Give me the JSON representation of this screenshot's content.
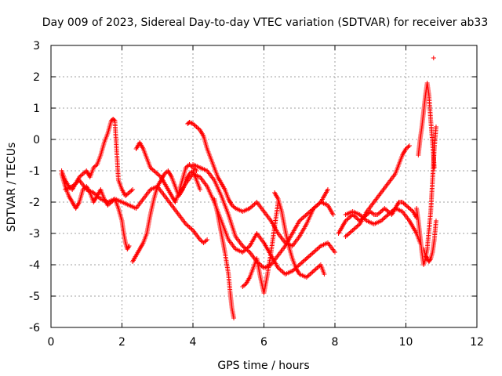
{
  "chart_data": {
    "type": "scatter",
    "title": "Day 009 of 2023, Sidereal Day-to-day VTEC variation (SDTVAR) for receiver ab33",
    "xlabel": "GPS time / hours",
    "ylabel": "SDTVAR / TECUs",
    "xlim": [
      0,
      12
    ],
    "ylim": [
      -6,
      3
    ],
    "xticks": [
      0,
      2,
      4,
      6,
      8,
      10,
      12
    ],
    "yticks": [
      -6,
      -5,
      -4,
      -3,
      -2,
      -1,
      0,
      1,
      2,
      3
    ],
    "grid": true,
    "marker": "+",
    "color": "#ff0000",
    "series": [
      {
        "name": "s1",
        "x": [
          0.3,
          0.4,
          0.5,
          0.6,
          0.7,
          0.8,
          0.9,
          1.0,
          1.1,
          1.2,
          1.3,
          1.4,
          1.5,
          1.6,
          1.7,
          1.75,
          1.8,
          1.9,
          2.0,
          2.1,
          2.2,
          2.3
        ],
        "y": [
          -1.0,
          -1.3,
          -1.5,
          -1.6,
          -1.4,
          -1.2,
          -1.1,
          -1.0,
          -1.2,
          -0.9,
          -0.8,
          -0.5,
          -0.1,
          0.2,
          0.6,
          0.65,
          0.6,
          -1.3,
          -1.6,
          -1.8,
          -1.7,
          -1.6
        ]
      },
      {
        "name": "s2",
        "x": [
          0.3,
          0.4,
          0.5,
          0.6,
          0.7,
          0.8,
          0.9,
          1.0,
          1.1,
          1.2,
          1.3,
          1.4,
          1.5,
          1.6,
          1.7,
          1.8,
          1.9,
          2.0,
          2.05,
          2.1,
          2.15,
          2.2
        ],
        "y": [
          -1.1,
          -1.5,
          -1.8,
          -2.0,
          -2.2,
          -2.0,
          -1.6,
          -1.5,
          -1.7,
          -2.0,
          -1.8,
          -1.6,
          -1.9,
          -2.1,
          -2.0,
          -1.9,
          -2.2,
          -2.6,
          -3.0,
          -3.3,
          -3.5,
          -3.4
        ]
      },
      {
        "name": "s3",
        "x": [
          0.4,
          0.6,
          0.8,
          1.0,
          1.2,
          1.4,
          1.6,
          1.8,
          2.0,
          2.2,
          2.4,
          2.6,
          2.8,
          3.0,
          3.2,
          3.4,
          3.6,
          3.8,
          4.0,
          4.2,
          4.3,
          4.4
        ],
        "y": [
          -1.6,
          -1.5,
          -1.3,
          -1.6,
          -1.7,
          -1.9,
          -2.0,
          -1.9,
          -2.0,
          -2.1,
          -2.2,
          -1.9,
          -1.6,
          -1.5,
          -1.8,
          -2.1,
          -2.4,
          -2.7,
          -2.9,
          -3.2,
          -3.3,
          -3.2
        ]
      },
      {
        "name": "s4",
        "x": [
          2.3,
          2.4,
          2.5,
          2.6,
          2.7,
          2.8,
          2.9,
          3.0,
          3.1,
          3.2,
          3.3,
          3.4,
          3.5,
          3.6,
          3.7,
          3.8,
          3.9,
          4.0,
          4.1,
          4.2
        ],
        "y": [
          -3.9,
          -3.7,
          -3.5,
          -3.3,
          -3.0,
          -2.4,
          -1.9,
          -1.5,
          -1.3,
          -1.1,
          -1.0,
          -1.2,
          -1.5,
          -1.8,
          -1.6,
          -1.3,
          -1.1,
          -1.0,
          -1.3,
          -1.6
        ]
      },
      {
        "name": "s5",
        "x": [
          2.4,
          2.5,
          2.6,
          2.7,
          2.8,
          2.9,
          3.0,
          3.1,
          3.2,
          3.3,
          3.4,
          3.5,
          3.6,
          3.7,
          3.8,
          3.9,
          4.0,
          4.1
        ],
        "y": [
          -0.3,
          -0.1,
          -0.3,
          -0.6,
          -0.9,
          -1.0,
          -1.1,
          -1.2,
          -1.4,
          -1.6,
          -1.8,
          -2.0,
          -1.7,
          -1.3,
          -0.9,
          -0.8,
          -0.9,
          -1.0
        ]
      },
      {
        "name": "s6",
        "x": [
          3.85,
          3.9,
          4.0,
          4.1,
          4.2,
          4.3,
          4.4,
          4.5,
          4.6,
          4.7,
          4.8,
          4.9,
          5.0,
          5.1,
          5.2,
          5.4,
          5.6,
          5.8,
          6.0,
          6.2,
          6.4,
          6.6,
          6.8,
          7.0,
          7.2,
          7.4,
          7.6,
          7.8
        ],
        "y": [
          0.5,
          0.55,
          0.5,
          0.4,
          0.3,
          0.1,
          -0.3,
          -0.6,
          -0.9,
          -1.2,
          -1.4,
          -1.6,
          -1.9,
          -2.1,
          -2.2,
          -2.3,
          -2.2,
          -2.0,
          -2.3,
          -2.6,
          -3.0,
          -3.3,
          -3.4,
          -3.1,
          -2.7,
          -2.2,
          -2.0,
          -1.6
        ]
      },
      {
        "name": "s7",
        "x": [
          3.6,
          3.8,
          4.0,
          4.2,
          4.4,
          4.6,
          4.8,
          5.0,
          5.2,
          5.4,
          5.6,
          5.8,
          6.0,
          6.2,
          6.4,
          6.6,
          6.8,
          7.0,
          7.2,
          7.4,
          7.6,
          7.8,
          8.0
        ],
        "y": [
          -1.8,
          -1.4,
          -1.1,
          -1.2,
          -1.5,
          -2.0,
          -2.6,
          -3.2,
          -3.5,
          -3.6,
          -3.4,
          -3.0,
          -3.3,
          -3.7,
          -4.1,
          -4.3,
          -4.2,
          -4.0,
          -3.8,
          -3.6,
          -3.4,
          -3.3,
          -3.6
        ]
      },
      {
        "name": "s8",
        "x": [
          4.0,
          4.2,
          4.4,
          4.6,
          4.8,
          5.0,
          5.2,
          5.4,
          5.6,
          5.8,
          6.0,
          6.2,
          6.4,
          6.6,
          6.8,
          7.0,
          7.2,
          7.4,
          7.6,
          7.8,
          7.95
        ],
        "y": [
          -0.8,
          -0.9,
          -1.0,
          -1.3,
          -1.8,
          -2.4,
          -3.1,
          -3.4,
          -3.6,
          -3.9,
          -4.1,
          -4.0,
          -3.7,
          -3.4,
          -3.0,
          -2.6,
          -2.4,
          -2.2,
          -2.0,
          -2.1,
          -2.4
        ]
      },
      {
        "name": "s9",
        "x": [
          4.6,
          4.7,
          4.8,
          4.9,
          5.0,
          5.05,
          5.1,
          5.15
        ],
        "y": [
          -1.9,
          -2.4,
          -3.0,
          -3.6,
          -4.3,
          -4.9,
          -5.4,
          -5.7
        ]
      },
      {
        "name": "s10",
        "x": [
          5.4,
          5.5,
          5.6,
          5.7,
          5.8,
          5.9,
          6.0,
          6.1,
          6.2,
          6.3,
          6.4
        ],
        "y": [
          -4.7,
          -4.6,
          -4.4,
          -4.1,
          -3.8,
          -4.4,
          -4.9,
          -4.3,
          -3.6,
          -2.8,
          -2.0
        ]
      },
      {
        "name": "s11",
        "x": [
          6.3,
          6.4,
          6.5,
          6.6,
          6.7,
          6.8,
          6.9,
          7.0,
          7.2,
          7.4,
          7.6,
          7.7
        ],
        "y": [
          -1.7,
          -1.9,
          -2.3,
          -2.9,
          -3.4,
          -3.8,
          -4.1,
          -4.3,
          -4.4,
          -4.2,
          -4.0,
          -4.3
        ]
      },
      {
        "name": "s12",
        "x": [
          8.1,
          8.2,
          8.3,
          8.4,
          8.5,
          8.6,
          8.7,
          8.8,
          8.9,
          9.0,
          9.1,
          9.2,
          9.3,
          9.4,
          9.5,
          9.6,
          9.7,
          9.8,
          9.9,
          10.0,
          10.1,
          10.2,
          10.3
        ],
        "y": [
          -3.0,
          -2.8,
          -2.6,
          -2.5,
          -2.4,
          -2.5,
          -2.6,
          -2.5,
          -2.4,
          -2.3,
          -2.4,
          -2.4,
          -2.3,
          -2.2,
          -2.3,
          -2.4,
          -2.2,
          -2.0,
          -2.0,
          -2.1,
          -2.2,
          -2.3,
          -2.5
        ]
      },
      {
        "name": "s13",
        "x": [
          8.3,
          8.5,
          8.7,
          8.9,
          9.1,
          9.3,
          9.5,
          9.7,
          9.8,
          9.9,
          10.0,
          10.1
        ],
        "y": [
          -3.1,
          -2.9,
          -2.7,
          -2.3,
          -2.0,
          -1.7,
          -1.4,
          -1.1,
          -0.8,
          -0.5,
          -0.3,
          -0.2
        ]
      },
      {
        "name": "s14",
        "x": [
          8.3,
          8.5,
          8.7,
          8.9,
          9.1,
          9.3,
          9.5,
          9.7,
          9.9,
          10.1,
          10.2,
          10.3,
          10.4
        ],
        "y": [
          -2.4,
          -2.3,
          -2.4,
          -2.6,
          -2.7,
          -2.6,
          -2.4,
          -2.2,
          -2.3,
          -2.6,
          -2.8,
          -3.0,
          -3.3
        ]
      },
      {
        "name": "s15",
        "x": [
          10.35,
          10.4,
          10.45,
          10.5,
          10.55,
          10.6,
          10.65,
          10.7,
          10.75,
          10.8
        ],
        "y": [
          -0.5,
          0.0,
          0.4,
          0.9,
          1.4,
          1.8,
          1.4,
          0.6,
          -0.1,
          -0.9
        ]
      },
      {
        "name": "s16",
        "x": [
          10.5,
          10.55,
          10.6,
          10.65,
          10.7,
          10.75,
          10.8,
          10.85
        ],
        "y": [
          -3.5,
          -3.7,
          -3.8,
          -3.9,
          -3.8,
          -3.6,
          -3.2,
          -2.6
        ]
      },
      {
        "name": "s17",
        "x": [
          10.3,
          10.35,
          10.4,
          10.45,
          10.5,
          10.55,
          10.6,
          10.65,
          10.7,
          10.75,
          10.8,
          10.85
        ],
        "y": [
          -2.2,
          -2.6,
          -3.1,
          -3.6,
          -4.0,
          -3.8,
          -3.5,
          -2.9,
          -2.3,
          -1.3,
          -0.3,
          0.4
        ]
      },
      {
        "name": "s18",
        "x": [
          10.78
        ],
        "y": [
          2.6
        ]
      }
    ]
  }
}
